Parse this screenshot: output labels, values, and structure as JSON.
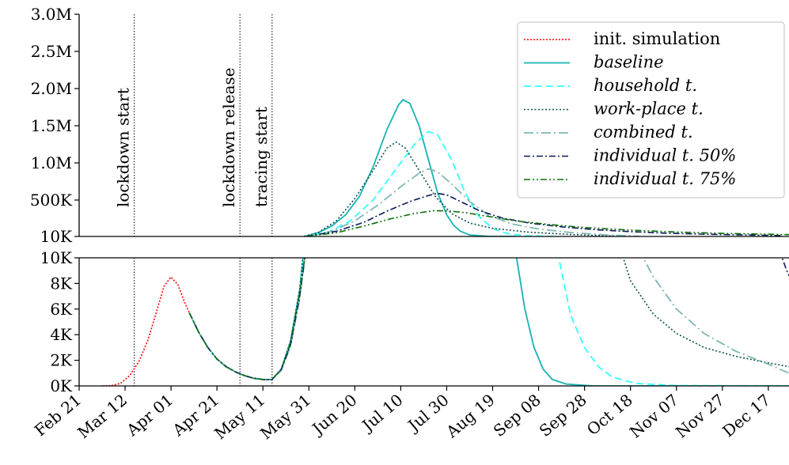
{
  "chart_data": {
    "type": "line",
    "x_tick_labels": [
      "Feb 21",
      "Mar 12",
      "Apr 01",
      "Apr 21",
      "May 11",
      "May 31",
      "Jun 20",
      "Jul 10",
      "Jul 30",
      "Aug 19",
      "Sep 08",
      "Sep 28",
      "Oct 18",
      "Nov 07",
      "Nov 27",
      "Dec 17"
    ],
    "x_tick_days": [
      0,
      20,
      40,
      60,
      80,
      100,
      120,
      140,
      160,
      180,
      200,
      220,
      240,
      260,
      280,
      300
    ],
    "xlim_days": [
      0,
      309
    ],
    "top_panel": {
      "ylim": [
        10000,
        3000000
      ],
      "y_tick_values": [
        10000,
        500000,
        1000000,
        1500000,
        2000000,
        2500000,
        3000000
      ],
      "y_tick_labels": [
        "10K",
        "500K",
        "1.0M",
        "1.5M",
        "2.0M",
        "2.5M",
        "3.0M"
      ]
    },
    "bottom_panel": {
      "ylim": [
        0,
        10000
      ],
      "y_tick_values": [
        0,
        2000,
        4000,
        6000,
        8000,
        10000
      ],
      "y_tick_labels": [
        "0K",
        "2K",
        "4K",
        "6K",
        "8K",
        "10K"
      ]
    },
    "events": [
      {
        "label": "lockdown start",
        "day": 24
      },
      {
        "label": "lockdown release",
        "day": 70
      },
      {
        "label": "tracing start",
        "day": 84
      }
    ],
    "legend": [
      {
        "key": "init",
        "label": "init. simulation",
        "italic": false
      },
      {
        "key": "baseline",
        "label": "baseline",
        "italic": true
      },
      {
        "key": "household",
        "label": "household t.",
        "italic": true
      },
      {
        "key": "workplace",
        "label": "work-place t.",
        "italic": true
      },
      {
        "key": "combined",
        "label": "combined t.",
        "italic": true
      },
      {
        "key": "ind50",
        "label": "individual t. 50%",
        "italic": true
      },
      {
        "key": "ind75",
        "label": "individual t. 75%",
        "italic": true
      }
    ],
    "series": [
      {
        "key": "init",
        "color": "#ff0000",
        "dash": "2,2",
        "width": 1.6,
        "points": [
          [
            10,
            0
          ],
          [
            14,
            20
          ],
          [
            18,
            200
          ],
          [
            22,
            800
          ],
          [
            26,
            1900
          ],
          [
            30,
            3600
          ],
          [
            34,
            6000
          ],
          [
            37,
            7800
          ],
          [
            40,
            8500
          ],
          [
            43,
            7900
          ],
          [
            46,
            6500
          ],
          [
            48,
            5700
          ]
        ]
      },
      {
        "key": "baseline",
        "color": "#17b3b3",
        "dash": "",
        "width": 1.8,
        "points": [
          [
            48,
            5700
          ],
          [
            52,
            4200
          ],
          [
            56,
            3000
          ],
          [
            60,
            2100
          ],
          [
            64,
            1500
          ],
          [
            68,
            1100
          ],
          [
            72,
            800
          ],
          [
            76,
            600
          ],
          [
            80,
            500
          ],
          [
            84,
            500
          ],
          [
            88,
            1300
          ],
          [
            92,
            3500
          ],
          [
            96,
            7500
          ],
          [
            98,
            11000
          ],
          [
            104,
            60000
          ],
          [
            110,
            150000
          ],
          [
            116,
            300000
          ],
          [
            122,
            550000
          ],
          [
            128,
            950000
          ],
          [
            134,
            1450000
          ],
          [
            139,
            1780000
          ],
          [
            141,
            1850000
          ],
          [
            144,
            1800000
          ],
          [
            148,
            1500000
          ],
          [
            152,
            1050000
          ],
          [
            156,
            600000
          ],
          [
            160,
            300000
          ],
          [
            163,
            160000
          ],
          [
            166,
            80000
          ],
          [
            170,
            30000
          ],
          [
            178,
            12000
          ],
          [
            190,
            11000
          ],
          [
            190.5,
            9900
          ],
          [
            194,
            6000
          ],
          [
            198,
            3000
          ],
          [
            202,
            1300
          ],
          [
            206,
            500
          ],
          [
            212,
            150
          ],
          [
            224,
            0
          ],
          [
            309,
            0
          ]
        ]
      },
      {
        "key": "household",
        "color": "#33ffff",
        "dash": "9,5",
        "width": 1.8,
        "points": [
          [
            48,
            5700
          ],
          [
            52,
            4200
          ],
          [
            56,
            3000
          ],
          [
            60,
            2100
          ],
          [
            64,
            1500
          ],
          [
            68,
            1100
          ],
          [
            72,
            800
          ],
          [
            76,
            600
          ],
          [
            80,
            500
          ],
          [
            84,
            500
          ],
          [
            88,
            1300
          ],
          [
            92,
            3300
          ],
          [
            96,
            7200
          ],
          [
            98,
            11000
          ],
          [
            108,
            60000
          ],
          [
            118,
            220000
          ],
          [
            128,
            500000
          ],
          [
            138,
            920000
          ],
          [
            146,
            1250000
          ],
          [
            152,
            1420000
          ],
          [
            156,
            1380000
          ],
          [
            162,
            1050000
          ],
          [
            168,
            600000
          ],
          [
            174,
            280000
          ],
          [
            180,
            120000
          ],
          [
            186,
            50000
          ],
          [
            194,
            20000
          ],
          [
            204,
            12000
          ],
          [
            208,
            10200
          ],
          [
            209,
            9800
          ],
          [
            214,
            5500
          ],
          [
            220,
            3000
          ],
          [
            226,
            1500
          ],
          [
            232,
            700
          ],
          [
            242,
            200
          ],
          [
            260,
            30
          ],
          [
            309,
            0
          ]
        ]
      },
      {
        "key": "workplace",
        "color": "#0d4f4f",
        "dash": "2,2.5",
        "width": 1.6,
        "points": [
          [
            48,
            5700
          ],
          [
            52,
            4200
          ],
          [
            56,
            3000
          ],
          [
            60,
            2100
          ],
          [
            64,
            1500
          ],
          [
            68,
            1100
          ],
          [
            72,
            800
          ],
          [
            76,
            600
          ],
          [
            80,
            500
          ],
          [
            84,
            500
          ],
          [
            88,
            1300
          ],
          [
            92,
            3500
          ],
          [
            96,
            7500
          ],
          [
            98,
            11000
          ],
          [
            104,
            60000
          ],
          [
            112,
            220000
          ],
          [
            120,
            520000
          ],
          [
            128,
            900000
          ],
          [
            134,
            1200000
          ],
          [
            138,
            1280000
          ],
          [
            142,
            1200000
          ],
          [
            148,
            900000
          ],
          [
            155,
            550000
          ],
          [
            162,
            320000
          ],
          [
            170,
            190000
          ],
          [
            180,
            120000
          ],
          [
            195,
            70000
          ],
          [
            215,
            35000
          ],
          [
            230,
            20000
          ],
          [
            236,
            10500
          ],
          [
            240,
            8200
          ],
          [
            250,
            5600
          ],
          [
            260,
            4100
          ],
          [
            272,
            3000
          ],
          [
            286,
            2300
          ],
          [
            300,
            1800
          ],
          [
            309,
            1500
          ]
        ]
      },
      {
        "key": "combined",
        "color": "#7fb8b5",
        "dash": "12,4,2,4",
        "width": 1.8,
        "points": [
          [
            48,
            5700
          ],
          [
            52,
            4200
          ],
          [
            56,
            3000
          ],
          [
            60,
            2100
          ],
          [
            64,
            1500
          ],
          [
            68,
            1100
          ],
          [
            72,
            800
          ],
          [
            76,
            600
          ],
          [
            80,
            500
          ],
          [
            84,
            500
          ],
          [
            88,
            1200
          ],
          [
            92,
            3100
          ],
          [
            96,
            6800
          ],
          [
            99,
            11000
          ],
          [
            110,
            80000
          ],
          [
            120,
            220000
          ],
          [
            130,
            430000
          ],
          [
            140,
            680000
          ],
          [
            148,
            860000
          ],
          [
            152,
            920000
          ],
          [
            156,
            880000
          ],
          [
            162,
            720000
          ],
          [
            170,
            480000
          ],
          [
            178,
            300000
          ],
          [
            188,
            180000
          ],
          [
            200,
            110000
          ],
          [
            215,
            60000
          ],
          [
            230,
            30000
          ],
          [
            240,
            18000
          ],
          [
            244,
            10500
          ],
          [
            250,
            8500
          ],
          [
            260,
            6000
          ],
          [
            272,
            4100
          ],
          [
            286,
            2700
          ],
          [
            300,
            1700
          ],
          [
            309,
            1000
          ]
        ]
      },
      {
        "key": "ind50",
        "color": "#0d1a5c",
        "dash": "8,3,2,3",
        "width": 1.6,
        "points": [
          [
            48,
            5700
          ],
          [
            52,
            4200
          ],
          [
            56,
            3000
          ],
          [
            60,
            2100
          ],
          [
            64,
            1500
          ],
          [
            68,
            1100
          ],
          [
            72,
            800
          ],
          [
            76,
            600
          ],
          [
            80,
            500
          ],
          [
            84,
            500
          ],
          [
            88,
            1300
          ],
          [
            92,
            3200
          ],
          [
            96,
            7000
          ],
          [
            99,
            11000
          ],
          [
            112,
            80000
          ],
          [
            124,
            200000
          ],
          [
            134,
            350000
          ],
          [
            144,
            480000
          ],
          [
            152,
            560000
          ],
          [
            156,
            590000
          ],
          [
            160,
            570000
          ],
          [
            166,
            480000
          ],
          [
            174,
            360000
          ],
          [
            184,
            260000
          ],
          [
            196,
            190000
          ],
          [
            210,
            140000
          ],
          [
            225,
            100000
          ],
          [
            240,
            75000
          ],
          [
            255,
            55000
          ],
          [
            270,
            42000
          ],
          [
            285,
            32000
          ],
          [
            300,
            25000
          ],
          [
            305,
            22000
          ],
          [
            306,
            10000
          ],
          [
            308,
            9000
          ],
          [
            309,
            8600
          ]
        ]
      },
      {
        "key": "ind75",
        "color": "#0a6e0a",
        "dash": "8,3,2,3,2,3",
        "width": 1.6,
        "points": [
          [
            48,
            5700
          ],
          [
            52,
            4200
          ],
          [
            56,
            3000
          ],
          [
            60,
            2100
          ],
          [
            64,
            1500
          ],
          [
            68,
            1100
          ],
          [
            72,
            800
          ],
          [
            76,
            600
          ],
          [
            80,
            500
          ],
          [
            84,
            500
          ],
          [
            88,
            1300
          ],
          [
            92,
            3300
          ],
          [
            96,
            7200
          ],
          [
            99,
            11000
          ],
          [
            112,
            60000
          ],
          [
            124,
            150000
          ],
          [
            136,
            250000
          ],
          [
            146,
            320000
          ],
          [
            154,
            355000
          ],
          [
            160,
            355000
          ],
          [
            168,
            330000
          ],
          [
            178,
            280000
          ],
          [
            190,
            220000
          ],
          [
            205,
            170000
          ],
          [
            220,
            130000
          ],
          [
            240,
            95000
          ],
          [
            260,
            70000
          ],
          [
            280,
            52000
          ],
          [
            300,
            40000
          ],
          [
            309,
            35000
          ]
        ]
      }
    ]
  }
}
